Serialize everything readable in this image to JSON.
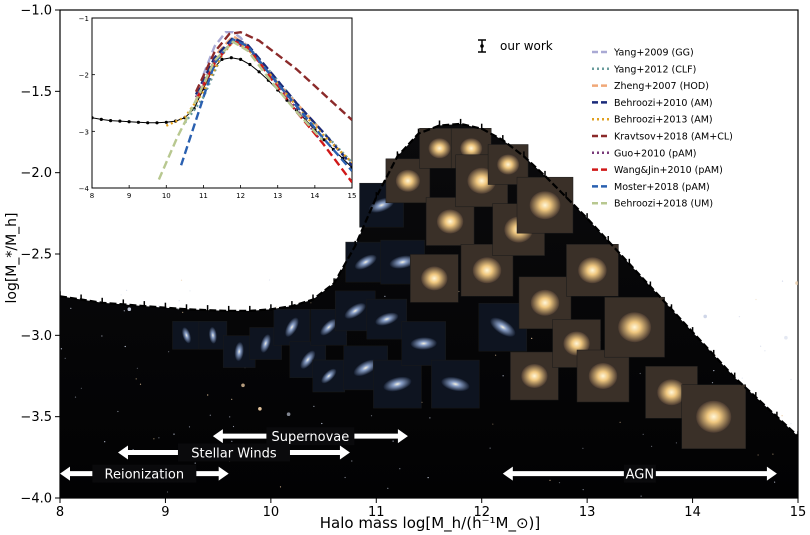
{
  "chart_data": [
    {
      "type": "line",
      "xlabel": "Halo mass log[M_h/(h⁻¹M_⊙)]",
      "ylabel": "log[M_*/M_h]",
      "xlim": [
        8,
        15
      ],
      "ylim": [
        -4.0,
        -1.0
      ],
      "x_ticks": [
        "8",
        "9",
        "10",
        "11",
        "12",
        "13",
        "14",
        "15"
      ],
      "y_ticks": [
        "−4.0",
        "−3.5",
        "−3.0",
        "−2.5",
        "−2.0",
        "−1.5",
        "−1.0"
      ],
      "legend_placement": "inside inset right",
      "series": [
        {
          "name": "our work",
          "x": [
            8.0,
            8.2,
            8.4,
            8.6,
            8.8,
            9.0,
            9.2,
            9.4,
            9.6,
            9.8,
            10.0,
            10.2,
            10.4,
            10.6,
            10.8,
            11.0,
            11.2,
            11.4,
            11.6,
            11.8,
            12.0,
            12.2,
            12.4,
            12.6,
            12.8,
            13.0,
            13.2,
            13.4,
            13.6,
            13.8,
            14.0,
            14.2,
            14.4,
            14.6,
            14.8,
            15.0
          ],
          "y": [
            -2.76,
            -2.78,
            -2.8,
            -2.81,
            -2.82,
            -2.83,
            -2.84,
            -2.845,
            -2.85,
            -2.85,
            -2.84,
            -2.82,
            -2.78,
            -2.68,
            -2.45,
            -2.15,
            -1.9,
            -1.76,
            -1.71,
            -1.7,
            -1.73,
            -1.8,
            -1.9,
            -2.02,
            -2.15,
            -2.28,
            -2.42,
            -2.56,
            -2.7,
            -2.84,
            -2.98,
            -3.12,
            -3.26,
            -3.38,
            -3.5,
            -3.62
          ]
        }
      ],
      "annotations": [
        {
          "text": "Reionization",
          "x_from": 8.0,
          "x_to": 9.6,
          "y": -3.85
        },
        {
          "text": "Stellar Winds",
          "x_from": 8.55,
          "x_to": 10.75,
          "y": -3.72
        },
        {
          "text": "Supernovae",
          "x_from": 9.45,
          "x_to": 11.3,
          "y": -3.62
        },
        {
          "text": "AGN",
          "x_from": 12.2,
          "x_to": 14.8,
          "y": -3.85
        }
      ]
    },
    {
      "type": "line",
      "title": "",
      "xlim": [
        8,
        15
      ],
      "ylim": [
        -4,
        -1
      ],
      "x_ticks": [
        "8",
        "9",
        "10",
        "11",
        "12",
        "13",
        "14",
        "15"
      ],
      "y_ticks": [
        "−4",
        "−3",
        "−2",
        "−1"
      ],
      "series": [
        {
          "name": "our work",
          "style": "points",
          "color": "#000000",
          "x": [
            8.0,
            8.25,
            8.5,
            8.75,
            9.0,
            9.25,
            9.5,
            9.75,
            10.0,
            10.25,
            10.5,
            10.75,
            11.0,
            11.25,
            11.5,
            11.75,
            12.0,
            12.25,
            12.5,
            12.75,
            13.0,
            13.25,
            13.5,
            13.75,
            14.0,
            14.25,
            14.5,
            14.75,
            15.0
          ],
          "y": [
            -2.76,
            -2.79,
            -2.81,
            -2.82,
            -2.83,
            -2.84,
            -2.85,
            -2.85,
            -2.84,
            -2.82,
            -2.76,
            -2.6,
            -2.25,
            -1.9,
            -1.73,
            -1.7,
            -1.73,
            -1.82,
            -1.95,
            -2.1,
            -2.27,
            -2.45,
            -2.62,
            -2.8,
            -2.97,
            -3.15,
            -3.32,
            -3.48,
            -3.64
          ]
        },
        {
          "name": "Yang+2009 (GG)",
          "style": "dashed",
          "color": "#a9a9d4",
          "x": [
            11.0,
            11.3,
            11.6,
            11.8,
            12.0,
            12.3
          ],
          "y": [
            -2.0,
            -1.5,
            -1.25,
            -1.25,
            -1.35,
            -1.6
          ]
        },
        {
          "name": "Yang+2012 (CLF)",
          "style": "dotted",
          "color": "#6a9c9c",
          "x": [
            10.5,
            11.0,
            11.5,
            11.8,
            12.2,
            12.8,
            13.5,
            14.2,
            15.0
          ],
          "y": [
            -2.85,
            -2.4,
            -1.65,
            -1.38,
            -1.5,
            -1.95,
            -2.5,
            -3.0,
            -3.55
          ]
        },
        {
          "name": "Zheng+2007 (HOD)",
          "style": "dashed",
          "color": "#f0a878",
          "x": [
            11.0,
            11.4,
            11.8,
            12.2,
            12.8,
            13.5,
            14.2
          ],
          "y": [
            -2.2,
            -1.6,
            -1.32,
            -1.5,
            -2.0,
            -2.5,
            -3.0
          ]
        },
        {
          "name": "Behroozi+2010 (AM)",
          "style": "dashed",
          "color": "#1a2a7a",
          "x": [
            10.8,
            11.3,
            11.8,
            12.2,
            12.8,
            13.5,
            14.2,
            15.0
          ],
          "y": [
            -2.35,
            -1.7,
            -1.35,
            -1.48,
            -1.95,
            -2.5,
            -3.0,
            -3.6
          ]
        },
        {
          "name": "Behroozi+2013 (AM)",
          "style": "dotted",
          "color": "#e0a020",
          "x": [
            10.0,
            10.5,
            11.0,
            11.5,
            11.8,
            12.2,
            12.8,
            13.5,
            14.2,
            15.0
          ],
          "y": [
            -2.9,
            -2.75,
            -2.3,
            -1.65,
            -1.42,
            -1.55,
            -2.0,
            -2.55,
            -3.05,
            -3.55
          ]
        },
        {
          "name": "Kravtsov+2018 (AM+CL)",
          "style": "dashed",
          "color": "#8b2a2a",
          "x": [
            10.8,
            11.3,
            11.7,
            12.0,
            12.5,
            13.0,
            13.5,
            14.0,
            14.5,
            15.0
          ],
          "y": [
            -2.3,
            -1.6,
            -1.28,
            -1.25,
            -1.4,
            -1.65,
            -1.9,
            -2.2,
            -2.5,
            -2.8
          ]
        },
        {
          "name": "Guo+2010 (pAM)",
          "style": "dotted",
          "color": "#7a3a7a",
          "x": [
            10.8,
            11.3,
            11.8,
            12.2,
            12.8,
            13.5,
            14.2
          ],
          "y": [
            -2.4,
            -1.75,
            -1.42,
            -1.55,
            -2.0,
            -2.6,
            -3.2
          ]
        },
        {
          "name": "Wang&Jin+2010 (pAM)",
          "style": "dashed",
          "color": "#d01818",
          "x": [
            10.8,
            11.3,
            11.8,
            12.2,
            12.8,
            13.5,
            14.2,
            15.0
          ],
          "y": [
            -2.45,
            -1.8,
            -1.4,
            -1.52,
            -2.05,
            -2.65,
            -3.2,
            -3.9
          ]
        },
        {
          "name": "Moster+2018 (pAM)",
          "style": "dashed",
          "color": "#2a60b0",
          "x": [
            10.4,
            10.8,
            11.3,
            11.8,
            12.2,
            12.8,
            13.5,
            14.2,
            15.0
          ],
          "y": [
            -3.6,
            -2.8,
            -1.8,
            -1.38,
            -1.5,
            -2.0,
            -2.55,
            -3.1,
            -3.7
          ]
        },
        {
          "name": "Behroozi+2018 (UM)",
          "style": "dashed",
          "color": "#b8c890",
          "x": [
            9.8,
            10.3,
            10.8,
            11.3,
            11.8,
            12.2,
            12.8,
            13.5,
            14.2
          ],
          "y": [
            -3.85,
            -3.1,
            -2.45,
            -1.75,
            -1.42,
            -1.58,
            -2.1,
            -2.65,
            -3.15
          ]
        }
      ]
    }
  ]
}
